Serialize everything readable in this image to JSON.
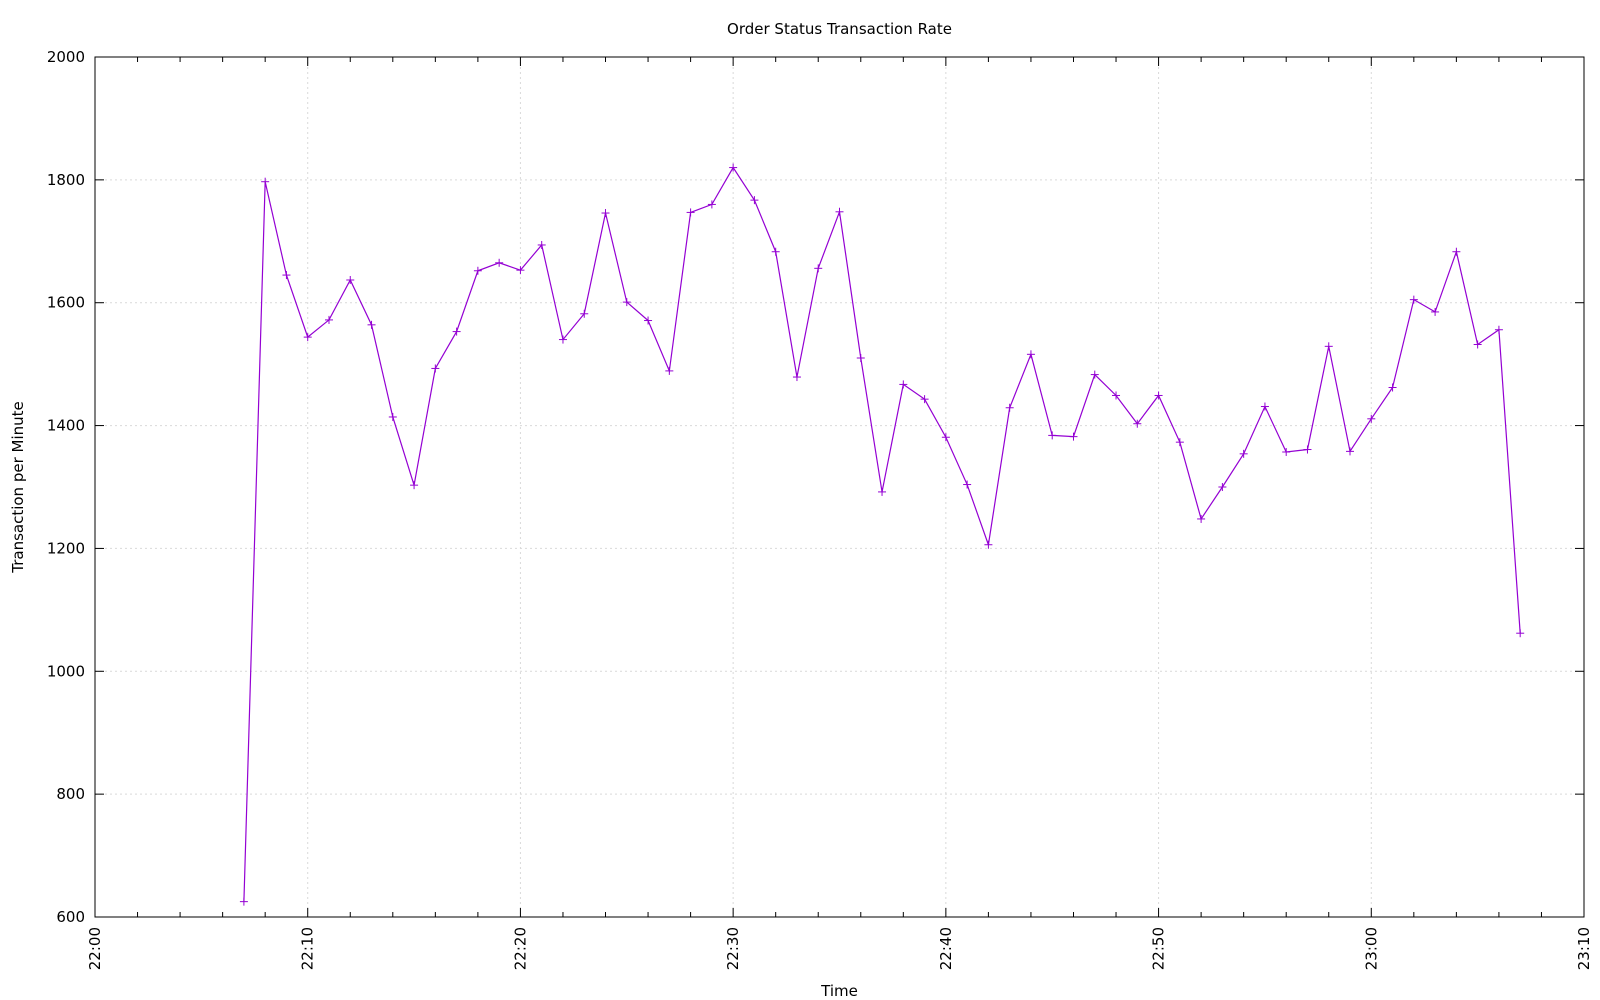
{
  "chart_data": {
    "type": "line",
    "title": "Order Status Transaction Rate",
    "xlabel": "Time",
    "ylabel": "Transaction per Minute",
    "xlim": [
      "22:00",
      "23:10"
    ],
    "ylim": [
      600,
      2000
    ],
    "x_ticks": [
      "22:00",
      "22:10",
      "22:20",
      "22:30",
      "22:40",
      "22:50",
      "23:00",
      "23:10"
    ],
    "y_ticks": [
      600,
      800,
      1000,
      1200,
      1400,
      1600,
      1800,
      2000
    ],
    "grid": true,
    "color": "#9400d3",
    "series": [
      {
        "x": [
          "22:07",
          "22:08",
          "22:09",
          "22:10",
          "22:11",
          "22:12",
          "22:13",
          "22:14",
          "22:15",
          "22:16",
          "22:17",
          "22:18",
          "22:19",
          "22:20",
          "22:21",
          "22:22",
          "22:23",
          "22:24",
          "22:25",
          "22:26",
          "22:27",
          "22:28",
          "22:29",
          "22:30",
          "22:31",
          "22:32",
          "22:33",
          "22:34",
          "22:35",
          "22:36",
          "22:37",
          "22:38",
          "22:39",
          "22:40",
          "22:41",
          "22:42",
          "22:43",
          "22:44",
          "22:45",
          "22:46",
          "22:47",
          "22:48",
          "22:49",
          "22:50",
          "22:51",
          "22:52",
          "22:53",
          "22:54",
          "22:55",
          "22:56",
          "22:57",
          "22:58",
          "22:59",
          "23:00",
          "23:01",
          "23:02",
          "23:03",
          "23:04",
          "23:05",
          "23:06",
          "23:07"
        ],
        "values": [
          625,
          1797,
          1645,
          1544,
          1572,
          1637,
          1564,
          1414,
          1303,
          1493,
          1553,
          1652,
          1665,
          1653,
          1694,
          1540,
          1582,
          1746,
          1601,
          1571,
          1489,
          1747,
          1760,
          1820,
          1767,
          1683,
          1479,
          1656,
          1748,
          1510,
          1292,
          1467,
          1443,
          1381,
          1304,
          1206,
          1429,
          1516,
          1384,
          1382,
          1483,
          1449,
          1403,
          1449,
          1373,
          1248,
          1300,
          1354,
          1431,
          1357,
          1361,
          1529,
          1358,
          1411,
          1462,
          1605,
          1585,
          1683,
          1532,
          1556,
          1062
        ]
      }
    ]
  }
}
